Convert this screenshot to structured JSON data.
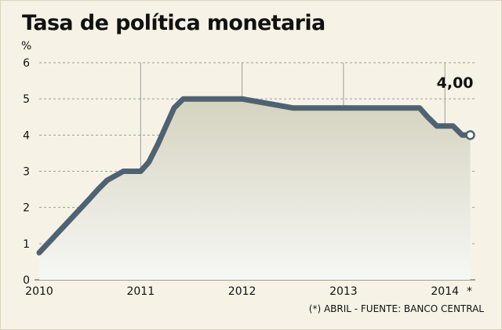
{
  "title": "Tasa de política monetaria",
  "source_note": "(*) ABRIL - FUENTE: BANCO CENTRAL",
  "last_value_label": "4,00",
  "last_marker": "*",
  "colors": {
    "background": "#f6f3e6",
    "line": "#4f6272",
    "area_top": "#d4d3bf",
    "area_bottom": "#f7f7f5",
    "grid": "#9b9b9b"
  },
  "chart_data": {
    "type": "line",
    "title": "Tasa de política monetaria",
    "ylabel": "%",
    "xlabel": "",
    "ylim": [
      0,
      6
    ],
    "yticks": [
      "0",
      "1",
      "2",
      "3",
      "4",
      "5",
      "6"
    ],
    "xticks": [
      "2010",
      "2011",
      "2012",
      "2013",
      "2014",
      "*"
    ],
    "xlim": [
      2010.0,
      2014.3
    ],
    "grid": true,
    "fill_area": true,
    "series": [
      {
        "x": [
          2010.0,
          2010.25,
          2010.5,
          2010.58,
          2010.67,
          2010.83,
          2010.92,
          2011.0,
          2011.08,
          2011.17,
          2011.25,
          2011.33,
          2011.42,
          2011.5,
          2011.58,
          2011.67,
          2011.75,
          2011.83,
          2011.92,
          2012.0,
          2012.5,
          2013.0,
          2013.5,
          2013.67,
          2013.75,
          2013.83,
          2013.92,
          2014.0,
          2014.08,
          2014.17,
          2014.25
        ],
        "y": [
          0.75,
          1.5,
          2.25,
          2.5,
          2.75,
          3.0,
          3.0,
          3.0,
          3.25,
          3.75,
          4.25,
          4.75,
          5.0,
          5.0,
          5.0,
          5.0,
          5.0,
          5.0,
          5.0,
          5.0,
          4.75,
          4.75,
          4.75,
          4.75,
          4.75,
          4.5,
          4.25,
          4.25,
          4.25,
          4.0,
          4.0
        ]
      }
    ],
    "annotations": [
      "4,00"
    ]
  }
}
